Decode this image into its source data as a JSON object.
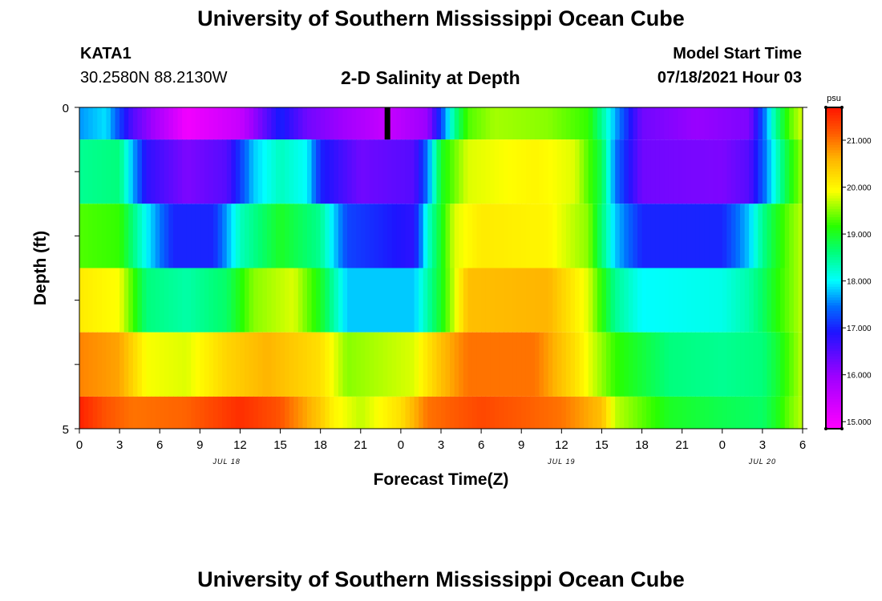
{
  "header": {
    "title": "University of Southern Mississippi Ocean Cube",
    "station_id": "KATA1",
    "coordinates": "30.2580N  88.2130W",
    "subtitle": "2-D Salinity at Depth",
    "model_start_label": "Model Start Time",
    "model_start_value": "07/18/2021 Hour 03"
  },
  "footer": {
    "title": "University of Southern Mississippi Ocean Cube"
  },
  "chart_data": {
    "type": "heatmap",
    "title": "2-D Salinity at Depth",
    "xlabel": "Forecast Time(Z)",
    "ylabel": "Depth (ft)",
    "x_range_hours": [
      0,
      54
    ],
    "y_range_ft": [
      0,
      5
    ],
    "x_ticks": [
      "0",
      "3",
      "6",
      "9",
      "12",
      "15",
      "18",
      "21",
      "0",
      "3",
      "6",
      "9",
      "12",
      "15",
      "18",
      "21",
      "0",
      "3",
      "6"
    ],
    "y_ticks": [
      "0",
      "5"
    ],
    "date_labels": [
      {
        "label": "JUL 18",
        "hour": 11
      },
      {
        "label": "JUL 19",
        "hour": 36
      },
      {
        "label": "JUL 20",
        "hour": 51
      }
    ],
    "current_time_marker_hour": 23,
    "colorbar": {
      "unit": "psu",
      "min": 14.85,
      "max": 21.7,
      "ticks": [
        "15.000",
        "16.000",
        "17.000",
        "18.000",
        "19.000",
        "20.000",
        "21.000"
      ],
      "tick_values": [
        15,
        16,
        17,
        18,
        19,
        20,
        21
      ]
    },
    "layers": [
      {
        "depth_ft": [
          0.0,
          0.5
        ],
        "keys": [
          [
            0,
            17.6
          ],
          [
            2,
            17.9
          ],
          [
            4,
            16.5
          ],
          [
            8,
            15.0
          ],
          [
            12,
            15.5
          ],
          [
            15,
            17.0
          ],
          [
            17,
            16.3
          ],
          [
            20,
            15.9
          ],
          [
            23,
            15.5
          ],
          [
            26,
            16.0
          ],
          [
            27,
            17.2
          ],
          [
            28,
            18.5
          ],
          [
            29,
            19.3
          ],
          [
            31,
            19.6
          ],
          [
            35,
            19.5
          ],
          [
            38,
            19.2
          ],
          [
            39,
            18.5
          ],
          [
            40,
            17.7
          ],
          [
            42,
            16.3
          ],
          [
            46,
            16.0
          ],
          [
            50,
            16.2
          ],
          [
            51,
            17.3
          ],
          [
            52,
            18.5
          ],
          [
            53,
            19.3
          ],
          [
            54,
            19.8
          ]
        ]
      },
      {
        "depth_ft": [
          0.5,
          1.5
        ],
        "keys": [
          [
            0,
            18.5
          ],
          [
            3,
            18.6
          ],
          [
            5,
            16.8
          ],
          [
            8,
            16.2
          ],
          [
            11,
            16.5
          ],
          [
            13,
            17.8
          ],
          [
            15,
            18.3
          ],
          [
            17,
            18.0
          ],
          [
            18,
            17.0
          ],
          [
            21,
            16.3
          ],
          [
            25,
            16.5
          ],
          [
            26,
            17.5
          ],
          [
            27,
            19.0
          ],
          [
            29,
            19.8
          ],
          [
            34,
            20.0
          ],
          [
            37,
            19.8
          ],
          [
            39,
            18.8
          ],
          [
            40,
            17.5
          ],
          [
            42,
            16.3
          ],
          [
            48,
            16.2
          ],
          [
            50,
            16.5
          ],
          [
            51,
            17.3
          ],
          [
            52,
            18.2
          ],
          [
            53,
            19.0
          ],
          [
            54,
            19.6
          ]
        ]
      },
      {
        "depth_ft": [
          1.5,
          2.5
        ],
        "keys": [
          [
            0,
            19.3
          ],
          [
            3,
            19.2
          ],
          [
            5,
            18.0
          ],
          [
            7,
            17.0
          ],
          [
            10,
            17.0
          ],
          [
            12,
            18.3
          ],
          [
            15,
            19.0
          ],
          [
            18,
            18.5
          ],
          [
            20,
            17.2
          ],
          [
            25,
            16.8
          ],
          [
            26,
            18.2
          ],
          [
            28,
            19.8
          ],
          [
            30,
            20.1
          ],
          [
            35,
            20.0
          ],
          [
            38,
            19.5
          ],
          [
            40,
            17.8
          ],
          [
            42,
            17.0
          ],
          [
            48,
            17.0
          ],
          [
            50,
            17.8
          ],
          [
            51,
            18.5
          ],
          [
            52,
            19.0
          ],
          [
            53,
            19.4
          ],
          [
            54,
            19.7
          ]
        ]
      },
      {
        "depth_ft": [
          2.5,
          3.5
        ],
        "keys": [
          [
            0,
            20.1
          ],
          [
            3,
            19.9
          ],
          [
            5,
            18.6
          ],
          [
            8,
            18.4
          ],
          [
            11,
            18.7
          ],
          [
            13,
            19.5
          ],
          [
            16,
            19.8
          ],
          [
            18,
            19.0
          ],
          [
            20,
            17.8
          ],
          [
            25,
            17.8
          ],
          [
            27,
            19.0
          ],
          [
            29,
            20.5
          ],
          [
            35,
            20.6
          ],
          [
            38,
            19.8
          ],
          [
            40,
            18.5
          ],
          [
            42,
            18.0
          ],
          [
            48,
            18.1
          ],
          [
            50,
            18.4
          ],
          [
            51,
            18.7
          ],
          [
            52,
            19.1
          ],
          [
            53,
            19.4
          ],
          [
            54,
            19.7
          ]
        ]
      },
      {
        "depth_ft": [
          3.5,
          4.5
        ],
        "keys": [
          [
            0,
            20.9
          ],
          [
            3,
            20.7
          ],
          [
            5,
            19.9
          ],
          [
            8,
            19.8
          ],
          [
            11,
            20.3
          ],
          [
            14,
            20.6
          ],
          [
            18,
            20.2
          ],
          [
            20,
            19.5
          ],
          [
            25,
            19.8
          ],
          [
            27,
            20.5
          ],
          [
            29,
            21.0
          ],
          [
            34,
            21.0
          ],
          [
            37,
            20.2
          ],
          [
            40,
            19.2
          ],
          [
            44,
            18.6
          ],
          [
            48,
            18.5
          ],
          [
            51,
            18.6
          ],
          [
            52,
            18.9
          ],
          [
            53,
            19.3
          ],
          [
            54,
            19.7
          ]
        ]
      },
      {
        "depth_ft": [
          4.5,
          5.0
        ],
        "keys": [
          [
            0,
            21.6
          ],
          [
            2,
            21.2
          ],
          [
            4,
            21.0
          ],
          [
            8,
            21.1
          ],
          [
            12,
            21.5
          ],
          [
            15,
            21.2
          ],
          [
            18,
            20.4
          ],
          [
            19,
            20.0
          ],
          [
            21,
            19.7
          ],
          [
            24,
            20.2
          ],
          [
            26,
            21.0
          ],
          [
            30,
            21.3
          ],
          [
            36,
            21.0
          ],
          [
            39,
            20.5
          ],
          [
            40,
            19.7
          ],
          [
            44,
            19.0
          ],
          [
            48,
            18.8
          ],
          [
            51,
            18.7
          ],
          [
            52,
            19.0
          ],
          [
            53,
            19.4
          ],
          [
            54,
            19.7
          ]
        ]
      }
    ]
  }
}
